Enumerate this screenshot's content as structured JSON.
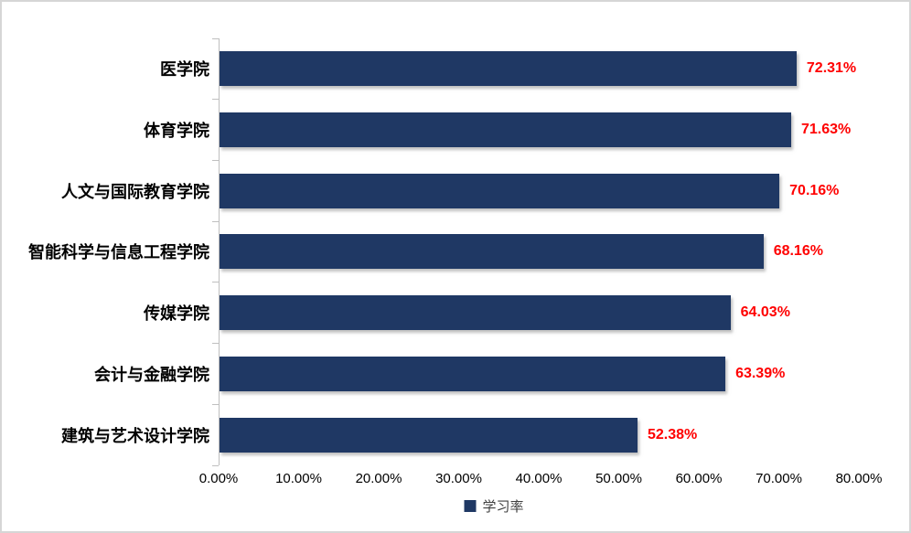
{
  "frame": {
    "background": "#ffffff",
    "border_color": "#d6d6d6"
  },
  "chart_data": {
    "type": "bar",
    "orientation": "horizontal",
    "title": "",
    "categories": [
      "医学院",
      "体育学院",
      "人文与国际教育学院",
      "智能科学与信息工程学院",
      "传媒学院",
      "会计与金融学院",
      "建筑与艺术设计学院"
    ],
    "values": [
      72.31,
      71.63,
      70.16,
      68.16,
      64.03,
      63.39,
      52.38
    ],
    "value_labels": [
      "72.31%",
      "71.63%",
      "70.16%",
      "68.16%",
      "64.03%",
      "63.39%",
      "52.38%"
    ],
    "x_axis": {
      "min": 0,
      "max": 80,
      "step": 10,
      "tick_labels": [
        "0.00%",
        "10.00%",
        "20.00%",
        "30.00%",
        "40.00%",
        "50.00%",
        "60.00%",
        "70.00%",
        "80.00%"
      ]
    },
    "legend": {
      "label": "学习率",
      "position": "bottom"
    },
    "grid": false,
    "colors": {
      "bar": "#1F3864",
      "value_label": "#FF0000",
      "axis_line": "#BFBFBF",
      "category_label": "#000000",
      "tick_label": "#000000",
      "legend_text": "#404040"
    }
  }
}
